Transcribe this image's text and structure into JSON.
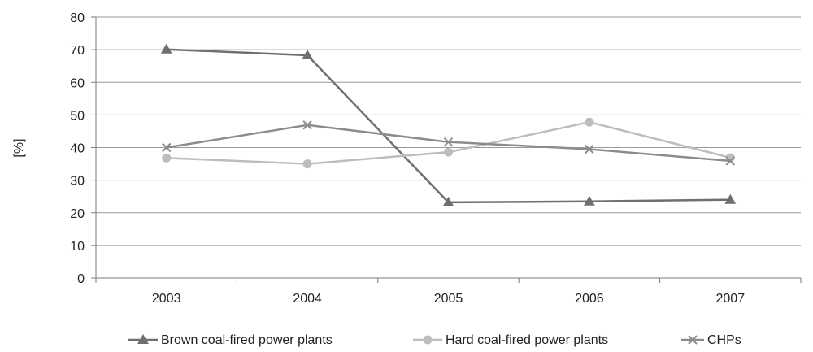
{
  "chart_data": {
    "type": "line",
    "title": "",
    "xlabel": "",
    "ylabel": "[%]",
    "categories": [
      "2003",
      "2004",
      "2005",
      "2006",
      "2007"
    ],
    "ylim": [
      0,
      80
    ],
    "yticks": [
      0,
      10,
      20,
      30,
      40,
      50,
      60,
      70,
      80
    ],
    "grid": "horizontal",
    "legend": "bottom",
    "series": [
      {
        "name": "Brown coal-fired power plants",
        "marker": "triangle",
        "color": "#6f6f6f",
        "values": [
          70.1,
          68.3,
          23.2,
          23.5,
          24.0
        ]
      },
      {
        "name": "Hard coal-fired power plants",
        "marker": "circle",
        "color": "#bdbdbd",
        "values": [
          36.8,
          35.0,
          38.6,
          47.8,
          36.9
        ]
      },
      {
        "name": "CHPs",
        "marker": "x",
        "color": "#8c8c8c",
        "values": [
          40.0,
          46.9,
          41.7,
          39.5,
          35.9
        ]
      }
    ]
  }
}
